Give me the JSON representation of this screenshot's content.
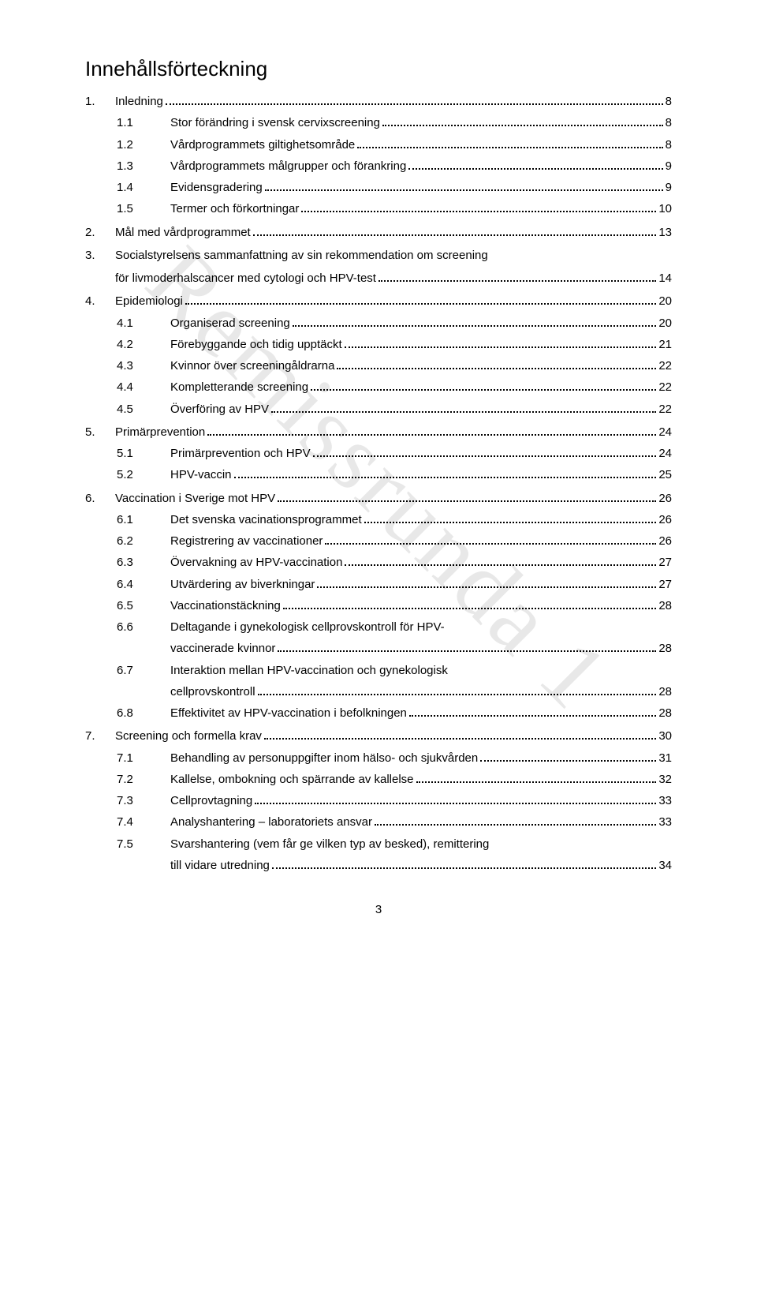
{
  "watermark": "Remissrunda 1",
  "title": "Innehållsförteckning",
  "page_number": "3",
  "entries": [
    {
      "level": 1,
      "num": "1.",
      "text": "Inledning",
      "page": "8"
    },
    {
      "level": 2,
      "num": "1.1",
      "text": "Stor förändring i svensk cervixscreening",
      "page": "8"
    },
    {
      "level": 2,
      "num": "1.2",
      "text": "Vårdprogrammets giltighetsområde",
      "page": "8"
    },
    {
      "level": 2,
      "num": "1.3",
      "text": "Vårdprogrammets målgrupper och förankring",
      "page": "9"
    },
    {
      "level": 2,
      "num": "1.4",
      "text": "Evidensgradering",
      "page": "9"
    },
    {
      "level": 2,
      "num": "1.5",
      "text": "Termer och förkortningar",
      "page": "10"
    },
    {
      "level": 1,
      "num": "2.",
      "text": "Mål med vårdprogrammet",
      "page": "13"
    },
    {
      "level": 1,
      "num": "3.",
      "text": "Socialstyrelsens sammanfattning av sin rekommendation om screening för livmoderhalscancer med cytologi och HPV-test",
      "page": "14",
      "wrap": true
    },
    {
      "level": 1,
      "num": "4.",
      "text": "Epidemiologi",
      "page": "20"
    },
    {
      "level": 2,
      "num": "4.1",
      "text": "Organiserad screening",
      "page": "20"
    },
    {
      "level": 2,
      "num": "4.2",
      "text": "Förebyggande och tidig upptäckt",
      "page": "21"
    },
    {
      "level": 2,
      "num": "4.3",
      "text": "Kvinnor över screeningåldrarna",
      "page": "22"
    },
    {
      "level": 2,
      "num": "4.4",
      "text": "Kompletterande screening",
      "page": "22"
    },
    {
      "level": 2,
      "num": "4.5",
      "text": "Överföring av HPV",
      "page": "22"
    },
    {
      "level": 1,
      "num": "5.",
      "text": "Primärprevention",
      "page": "24"
    },
    {
      "level": 2,
      "num": "5.1",
      "text": "Primärprevention och HPV",
      "page": "24"
    },
    {
      "level": 2,
      "num": "5.2",
      "text": "HPV-vaccin",
      "page": "25"
    },
    {
      "level": 1,
      "num": "6.",
      "text": "Vaccination i Sverige mot HPV",
      "page": "26"
    },
    {
      "level": 2,
      "num": "6.1",
      "text": "Det svenska vacinationsprogrammet",
      "page": "26"
    },
    {
      "level": 2,
      "num": "6.2",
      "text": "Registrering av vaccinationer",
      "page": "26"
    },
    {
      "level": 2,
      "num": "6.3",
      "text": "Övervakning av HPV-vaccination",
      "page": "27"
    },
    {
      "level": 2,
      "num": "6.4",
      "text": "Utvärdering av biverkningar",
      "page": "27"
    },
    {
      "level": 2,
      "num": "6.5",
      "text": "Vaccinationstäckning",
      "page": "28"
    },
    {
      "level": 2,
      "num": "6.6",
      "text": "Deltagande i gynekologisk cellprovskontroll för HPV-vaccinerade kvinnor",
      "page": "28",
      "wrap": true,
      "wrap_first": "Deltagande i gynekologisk cellprovskontroll för HPV-",
      "wrap_second": "vaccinerade kvinnor"
    },
    {
      "level": 2,
      "num": "6.7",
      "text": "Interaktion mellan HPV-vaccination och gynekologisk cellprovskontroll",
      "page": "28",
      "wrap": true,
      "wrap_first": "Interaktion mellan HPV-vaccination och gynekologisk",
      "wrap_second": "cellprovskontroll"
    },
    {
      "level": 2,
      "num": "6.8",
      "text": "Effektivitet av HPV-vaccination i befolkningen",
      "page": "28"
    },
    {
      "level": 1,
      "num": "7.",
      "text": "Screening och formella krav",
      "page": "30"
    },
    {
      "level": 2,
      "num": "7.1",
      "text": "Behandling av personuppgifter inom hälso- och sjukvården",
      "page": "31"
    },
    {
      "level": 2,
      "num": "7.2",
      "text": "Kallelse, ombokning och spärrande av kallelse",
      "page": "32"
    },
    {
      "level": 2,
      "num": "7.3",
      "text": "Cellprovtagning",
      "page": "33"
    },
    {
      "level": 2,
      "num": "7.4",
      "text": "Analyshantering – laboratoriets ansvar",
      "page": "33"
    },
    {
      "level": 2,
      "num": "7.5",
      "text": "Svarshantering (vem får ge vilken typ av besked), remittering till vidare utredning",
      "page": "34",
      "wrap": true,
      "wrap_first": "Svarshantering (vem får ge vilken typ av besked), remittering",
      "wrap_second": "till vidare utredning"
    }
  ],
  "wrap_entry3_first": "Socialstyrelsens sammanfattning av sin rekommendation om screening",
  "wrap_entry3_second": "för livmoderhalscancer med cytologi och HPV-test"
}
